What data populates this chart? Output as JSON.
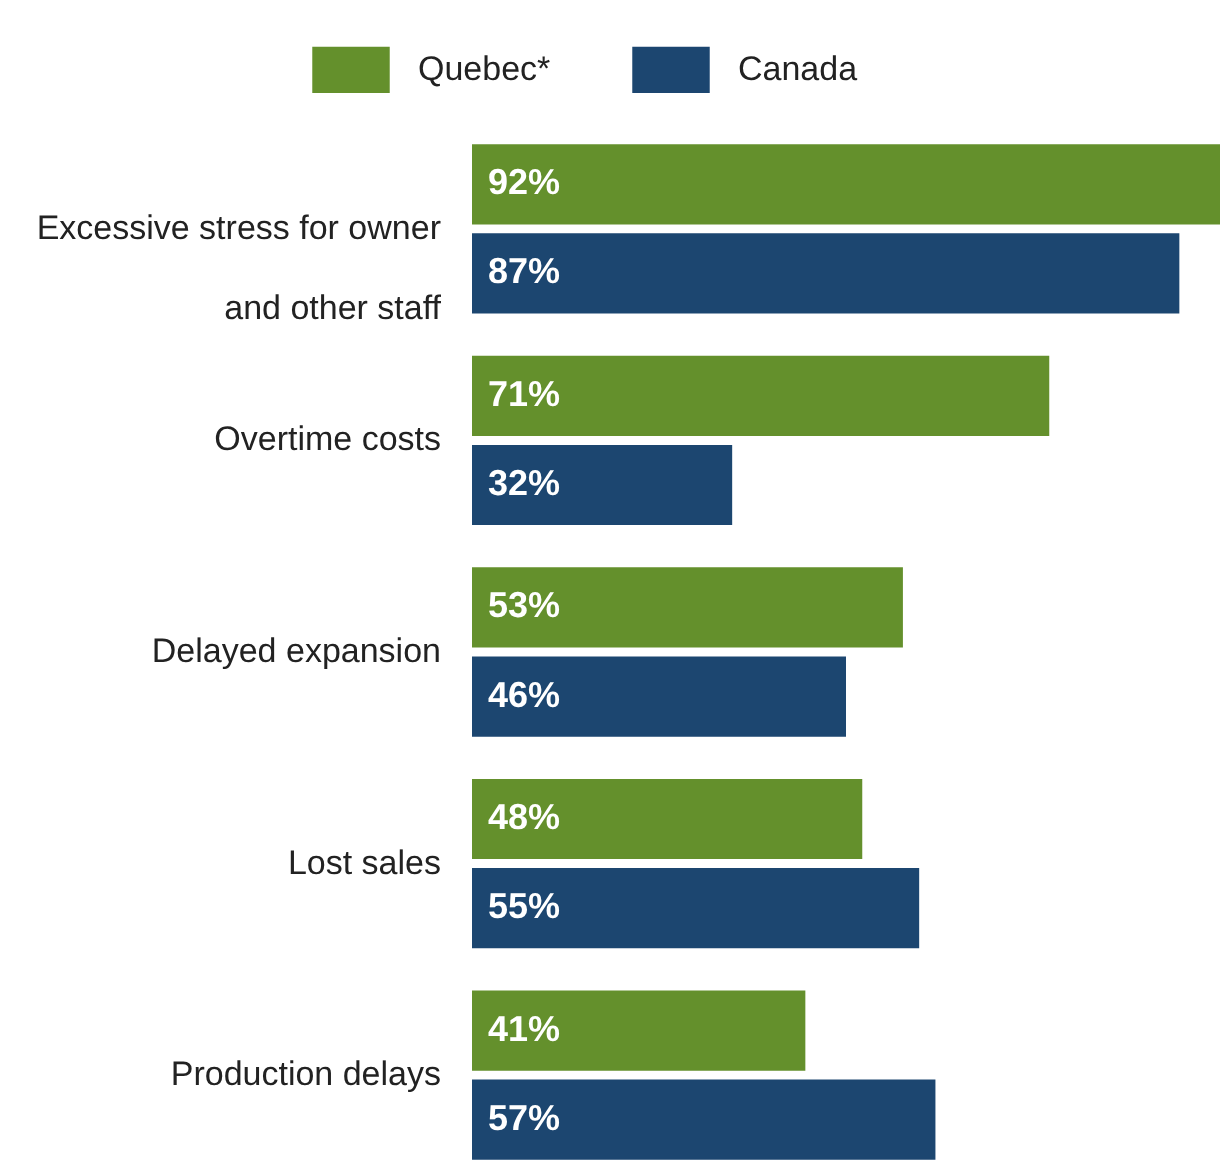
{
  "chart_data": {
    "type": "bar",
    "orientation": "horizontal",
    "categories": [
      "Excessive stress for owner and other staff",
      "Overtime costs",
      "Delayed expansion",
      "Lost sales",
      "Production delays"
    ],
    "series": [
      {
        "name": "Quebec*",
        "color": "#64902c",
        "values": [
          92,
          71,
          53,
          48,
          41
        ],
        "value_labels": [
          "92%",
          "71%",
          "53%",
          "48%",
          "41%"
        ]
      },
      {
        "name": "Canada",
        "color": "#1c4670",
        "values": [
          87,
          32,
          46,
          55,
          57
        ],
        "value_labels": [
          "87%",
          "32%",
          "46%",
          "55%",
          "57%"
        ]
      }
    ],
    "legend": "top"
  }
}
